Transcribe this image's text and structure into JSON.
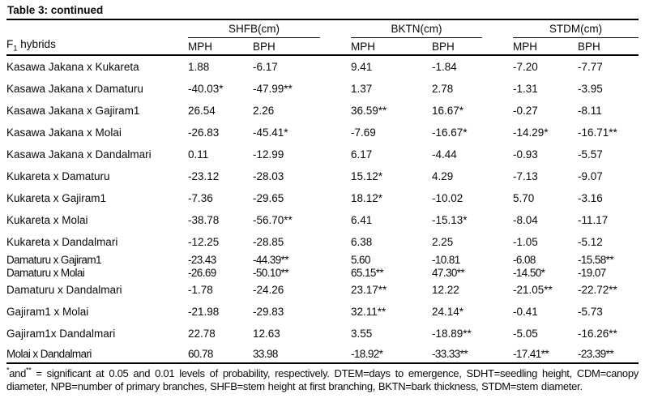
{
  "title": "Table 3: continued",
  "table": {
    "row_header": {
      "prefix": "F",
      "sub": "1",
      "rest": " hybrids"
    },
    "groups": [
      {
        "label": "SHFB(cm)",
        "sub": [
          "MPH",
          "BPH"
        ]
      },
      {
        "label": "BKTN(cm)",
        "sub": [
          "MPH",
          "BPH"
        ]
      },
      {
        "label": "STDM(cm)",
        "sub": [
          "MPH",
          "BPH"
        ]
      }
    ],
    "rows": [
      {
        "name": "Kasawa Jakana x Kukareta",
        "values": [
          "1.88",
          "-6.17",
          "9.41",
          "-1.84",
          "-7.20",
          "-7.77"
        ]
      },
      {
        "name": "Kasawa Jakana x Damaturu",
        "values": [
          "-40.03*",
          "-47.99**",
          "1.37",
          "2.78",
          "-1.31",
          "-3.95"
        ]
      },
      {
        "name": "Kasawa Jakana x Gajiram1",
        "values": [
          "26.54",
          "2.26",
          "36.59**",
          "16.67*",
          "-0.27",
          "-8.11"
        ]
      },
      {
        "name": "Kasawa Jakana x Molai",
        "values": [
          "-26.83",
          "-45.41*",
          "-7.69",
          "-16.67*",
          "-14.29*",
          "-16.71**"
        ]
      },
      {
        "name": "Kasawa Jakana x Dandalmari",
        "values": [
          "0.11",
          "-12.99",
          "6.17",
          "-4.44",
          "-0.93",
          "-5.57"
        ]
      },
      {
        "name": "Kukareta x Damaturu",
        "values": [
          "-23.12",
          "-28.03",
          "15.12*",
          "4.29",
          "-7.13",
          "-9.07"
        ]
      },
      {
        "name": "Kukareta x Gajiram1",
        "values": [
          "-7.36",
          "-29.65",
          "18.12*",
          "-10.02",
          "5.70",
          "-3.16"
        ]
      },
      {
        "name": "Kukareta x Molai",
        "values": [
          "-38.78",
          "-56.70**",
          "6.41",
          "-15.13*",
          "-8.04",
          "-11.17"
        ]
      },
      {
        "name": "Kukareta x Dandalmari",
        "values": [
          "-12.25",
          "-28.85",
          "6.38",
          "2.25",
          "-1.05",
          "-5.12"
        ]
      },
      {
        "name": "Damaturu x Gajiram1",
        "values": [
          "-23.43",
          "-44.39**",
          "5.60",
          "-10.81",
          "-6.08",
          "-15.58**"
        ],
        "tight": true,
        "condensed": true
      },
      {
        "name": "Damaturu x Molai",
        "values": [
          "-26.69",
          "-50.10**",
          "65.15**",
          "47.30**",
          "-14.50*",
          "-19.07"
        ],
        "tight": true,
        "condensed": true
      },
      {
        "name": "Damaturu x Dandalmari",
        "values": [
          "-1.78",
          "-24.26",
          "23.17**",
          "12.22",
          "-21.05**",
          "-22.72**"
        ]
      },
      {
        "name": "Gajiram1 x Molai",
        "values": [
          "-21.98",
          "-29.83",
          "32.11**",
          "24.14*",
          "-0.41",
          "-5.73"
        ]
      },
      {
        "name": "Gajiram1x Dandalmari",
        "values": [
          "22.78",
          "12.63",
          "3.55",
          "-18.89**",
          "-5.05",
          "-16.26**"
        ]
      },
      {
        "name": "Molai x Dandalmari",
        "values": [
          "60.78",
          "33.98",
          "-18.92*",
          "-33.33**",
          "-17.41**",
          "-23.39**"
        ],
        "medium": true,
        "condensed": true
      }
    ]
  },
  "footnote": {
    "segments": [
      {
        "text": "*",
        "sup": true
      },
      {
        "text": "and",
        "sup": false
      },
      {
        "text": "**",
        "sup": true
      },
      {
        "text": " = significant at 0.05 and 0.01 levels of probability, respectively. DTEM=days to emergence, SDHT=seedling height, CDM=canopy diameter, NPB=number of primary branches, SHFB=stem height at first branching, BKTN=bark thickness, STDM=stem diameter.",
        "sup": false
      }
    ]
  }
}
